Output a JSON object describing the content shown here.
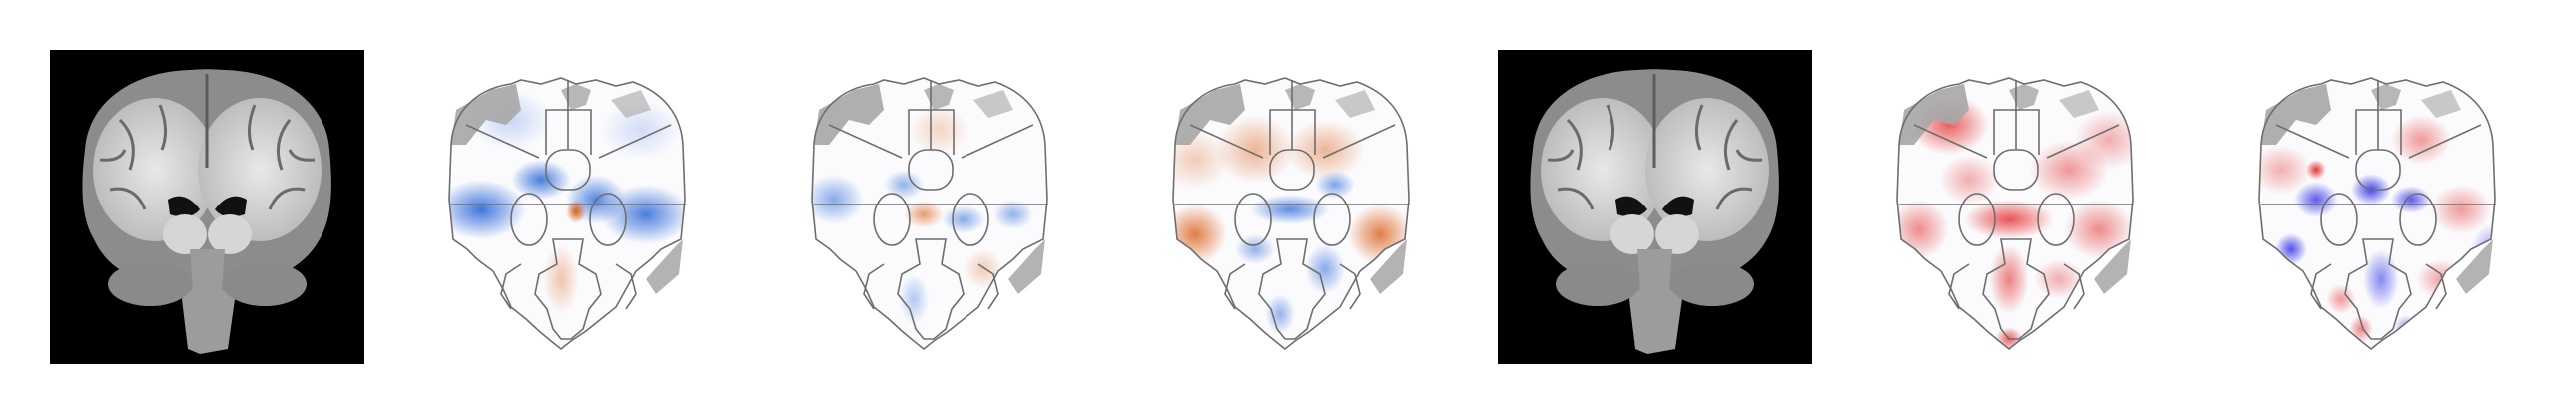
{
  "figure": {
    "panels": [
      {
        "kind": "mri",
        "background": "#000000"
      },
      {
        "kind": "map",
        "palette": "diverging-orange-blue",
        "positive": "#d9560b",
        "negative": "#1f5fd6"
      },
      {
        "kind": "map",
        "palette": "diverging-orange-blue",
        "positive": "#d9560b",
        "negative": "#1f5fd6"
      },
      {
        "kind": "map",
        "palette": "diverging-orange-blue",
        "positive": "#d9560b",
        "negative": "#1f5fd6"
      },
      {
        "kind": "mri",
        "background": "#000000"
      },
      {
        "kind": "map",
        "palette": "sequential-red",
        "positive": "#e01010",
        "negative": "#e01010"
      },
      {
        "kind": "map",
        "palette": "diverging-red-blue",
        "positive": "#e01515",
        "negative": "#1a1ae6"
      }
    ],
    "outline_color": "#6e6e6e",
    "mask_color": "#a6a6a6"
  }
}
